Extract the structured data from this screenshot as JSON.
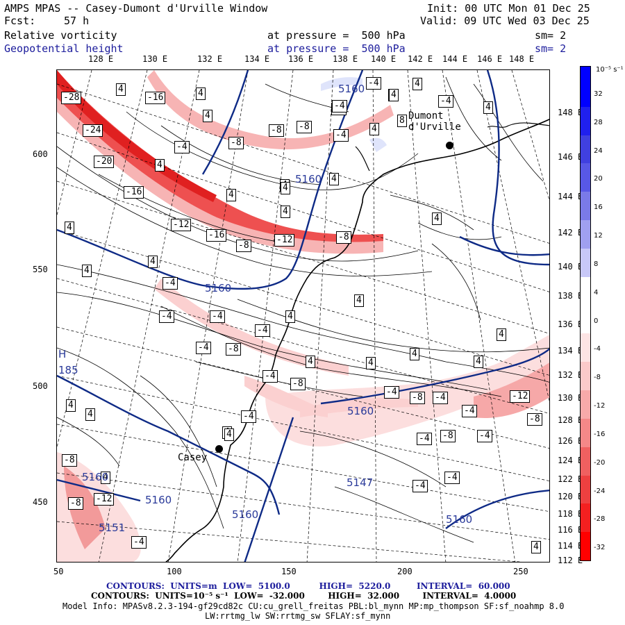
{
  "header": {
    "title": "AMPS MPAS -- Casey-Dumont d'Urville Window",
    "init": "Init: 00 UTC Mon 01 Dec 25",
    "fcst_label": "Fcst:",
    "fcst_value": "57 h",
    "valid": "Valid: 09 UTC Wed 03 Dec 25",
    "field1": "Relative vorticity",
    "field1_level": "at pressure =  500 hPa",
    "field1_sm": "sm= 2",
    "field2": "Geopotential height",
    "field2_level": "at pressure =  500 hPa",
    "field2_sm": "sm= 2"
  },
  "axes": {
    "lon_labels": [
      "128 E",
      "130 E",
      "132 E",
      "134 E",
      "136 E",
      "138 E",
      "140 E",
      "142 E",
      "144 E",
      "146 E",
      "148 E"
    ],
    "lat_labels": [
      "148 E",
      "146 E",
      "144 E",
      "142 E",
      "140 E",
      "138 E",
      "136 E",
      "134 E",
      "132 E",
      "130 E",
      "128 E",
      "126 E",
      "124 E",
      "122 E",
      "120 E",
      "118 E",
      "116 E",
      "114 E",
      "112 E"
    ],
    "y_labels": [
      "600",
      "550",
      "500",
      "450"
    ],
    "x_labels": [
      "50",
      "100",
      "150",
      "200",
      "250"
    ]
  },
  "map": {
    "vort_labels": [
      "-28",
      "-24",
      "-20",
      "-16",
      "-12",
      "-16",
      "-12",
      "-8",
      "-8",
      "-16",
      "-4",
      "4",
      "4",
      "4",
      "-8",
      "-8",
      "-4",
      "4",
      "4",
      "4",
      "4",
      "8",
      "-4",
      "-4",
      "4",
      "4",
      "4",
      "4",
      "4",
      "-4",
      "-8",
      "-4",
      "4",
      "4",
      "4",
      "4",
      "-4",
      "4",
      "-4",
      "-4",
      "-4",
      "-8",
      "-4",
      "4",
      "4",
      "4",
      "4",
      "4",
      "4",
      "-8",
      "-4",
      "-8",
      "-4",
      "4",
      "4",
      "4",
      "-4",
      "4",
      "-12",
      "-8",
      "-4",
      "-4",
      "-8",
      "-4",
      "-4",
      "-4",
      "-8",
      "-12",
      "-8",
      "-4",
      "4",
      "4",
      "-4",
      "4",
      "4"
    ],
    "height_labels": [
      "5160",
      "5160",
      "5160",
      "5160",
      "5147",
      "5160",
      "5160",
      "5151",
      "5160",
      "5160",
      "185"
    ],
    "low_marker": "H",
    "cities": [
      "Dumont d'Urville",
      "Casey"
    ]
  },
  "colorbar": {
    "unit": "10⁻⁵ s⁻¹",
    "labels": [
      "32",
      "28",
      "24",
      "20",
      "16",
      "12",
      "8",
      "4",
      "0",
      "-4",
      "-8",
      "-12",
      "-16",
      "-20",
      "-24",
      "-28",
      "-32"
    ],
    "colors": [
      "#0000ff",
      "#2020ee",
      "#4040e0",
      "#5858e6",
      "#7a7ae8",
      "#a0a0f0",
      "#c8c8f8",
      "#ffffff",
      "#ffffff",
      "#fde4e4",
      "#fbcaca",
      "#f8aaaa",
      "#f58888",
      "#f06060",
      "#ee4040",
      "#f42020",
      "#ff0000"
    ]
  },
  "footer": {
    "line1": "CONTOURS:  UNITS=m  LOW=  5100.0          HIGH=  5220.0         INTERVAL=  60.000",
    "line2": "CONTOURS:  UNITS=10⁻⁵ s⁻¹  LOW=  -32.000        HIGH=  32.000        INTERVAL=  4.0000",
    "line3": "Model Info: MPASv8.2.3-194-gf29cd82c CU:cu_grell_freitas PBL:bl_mynn MP:mp_thompson SF:sf_noahmp 8.0",
    "line4": "LW:rrtmg_lw SW:rrtmg_sw SFLAY:sf_mynn"
  }
}
